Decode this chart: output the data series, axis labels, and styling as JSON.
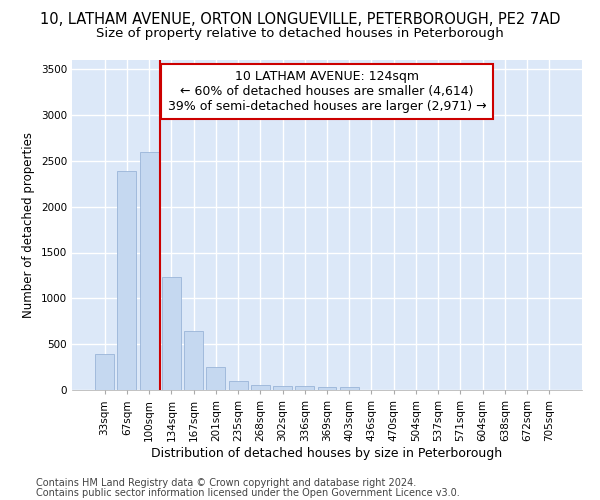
{
  "title_line1": "10, LATHAM AVENUE, ORTON LONGUEVILLE, PETERBOROUGH, PE2 7AD",
  "title_line2": "Size of property relative to detached houses in Peterborough",
  "xlabel": "Distribution of detached houses by size in Peterborough",
  "ylabel": "Number of detached properties",
  "categories": [
    "33sqm",
    "67sqm",
    "100sqm",
    "134sqm",
    "167sqm",
    "201sqm",
    "235sqm",
    "268sqm",
    "302sqm",
    "336sqm",
    "369sqm",
    "403sqm",
    "436sqm",
    "470sqm",
    "504sqm",
    "537sqm",
    "571sqm",
    "604sqm",
    "638sqm",
    "672sqm",
    "705sqm"
  ],
  "values": [
    390,
    2390,
    2600,
    1230,
    640,
    250,
    100,
    55,
    45,
    40,
    35,
    30,
    5,
    3,
    2,
    2,
    1,
    1,
    1,
    1,
    1
  ],
  "bar_color": "#c5d8f0",
  "bar_edge_color": "#9ab5d8",
  "vline_color": "#cc0000",
  "annotation_line1": "10 LATHAM AVENUE: 124sqm",
  "annotation_line2": "← 60% of detached houses are smaller (4,614)",
  "annotation_line3": "39% of semi-detached houses are larger (2,971) →",
  "annotation_box_color": "#ffffff",
  "annotation_box_edge_color": "#cc0000",
  "ylim": [
    0,
    3600
  ],
  "yticks": [
    0,
    500,
    1000,
    1500,
    2000,
    2500,
    3000,
    3500
  ],
  "footer_line1": "Contains HM Land Registry data © Crown copyright and database right 2024.",
  "footer_line2": "Contains public sector information licensed under the Open Government Licence v3.0.",
  "bg_color": "#ffffff",
  "plot_bg_color": "#dce8f8",
  "grid_color": "#ffffff",
  "title1_fontsize": 10.5,
  "title2_fontsize": 9.5,
  "tick_fontsize": 7.5,
  "xlabel_fontsize": 9,
  "ylabel_fontsize": 8.5,
  "footer_fontsize": 7,
  "annotation_fontsize": 9
}
